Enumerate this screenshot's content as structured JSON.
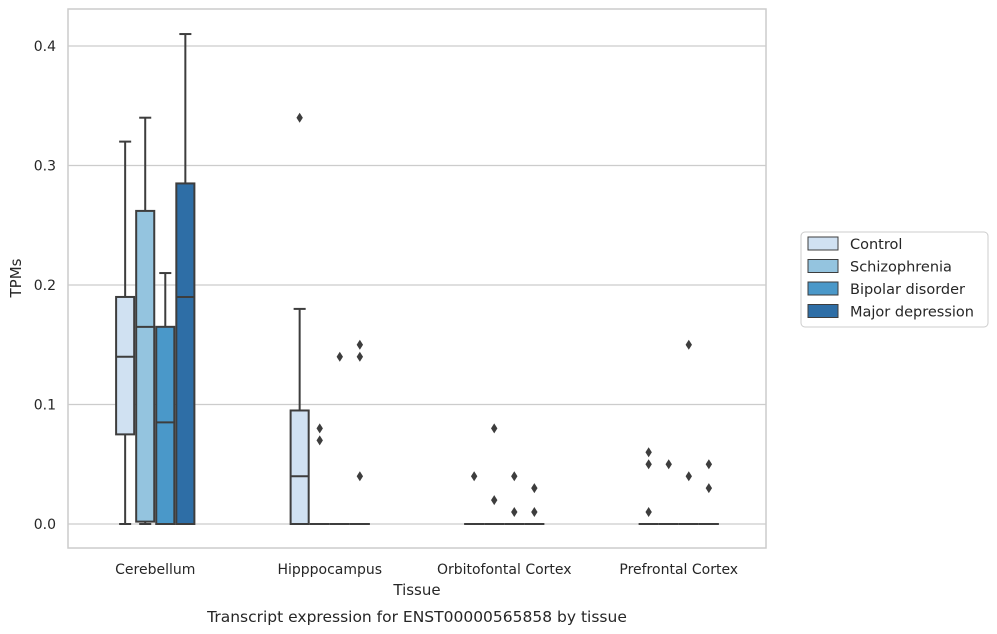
{
  "chart_data": {
    "type": "boxplot",
    "caption": "Transcript expression for ENST00000565858 by tissue",
    "xlabel": "Tissue",
    "ylabel": "TPMs",
    "ylim": [
      -0.02,
      0.43
    ],
    "yticks": [
      0.0,
      0.1,
      0.2,
      0.3,
      0.4
    ],
    "ytick_labels": [
      "0.0",
      "0.1",
      "0.2",
      "0.3",
      "0.4"
    ],
    "grid": true,
    "legend_position": "right",
    "categories": [
      "Cerebellum",
      "Hipppocampus",
      "Orbitofontal Cortex",
      "Prefrontal Cortex"
    ],
    "series": [
      {
        "name": "Control",
        "color": "#d0e1f2",
        "boxes": [
          {
            "whislo": 0.0,
            "q1": 0.075,
            "med": 0.14,
            "q3": 0.19,
            "whishi": 0.32,
            "fliers": []
          },
          {
            "whislo": 0.0,
            "q1": 0.0,
            "med": 0.04,
            "q3": 0.095,
            "whishi": 0.18,
            "fliers": [
              0.34
            ]
          },
          {
            "whislo": 0.0,
            "q1": 0.0,
            "med": 0.0,
            "q3": 0.0,
            "whishi": 0.0,
            "fliers": [
              0.04
            ]
          },
          {
            "whislo": 0.0,
            "q1": 0.0,
            "med": 0.0,
            "q3": 0.0,
            "whishi": 0.0,
            "fliers": [
              0.06,
              0.05,
              0.01
            ]
          }
        ]
      },
      {
        "name": "Schizophrenia",
        "color": "#94c4df",
        "boxes": [
          {
            "whislo": 0.0,
            "q1": 0.002,
            "med": 0.165,
            "q3": 0.262,
            "whishi": 0.34,
            "fliers": []
          },
          {
            "whislo": 0.0,
            "q1": 0.0,
            "med": 0.0,
            "q3": 0.0,
            "whishi": 0.0,
            "fliers": [
              0.08,
              0.07
            ]
          },
          {
            "whislo": 0.0,
            "q1": 0.0,
            "med": 0.0,
            "q3": 0.0,
            "whishi": 0.0,
            "fliers": [
              0.08,
              0.02
            ]
          },
          {
            "whislo": 0.0,
            "q1": 0.0,
            "med": 0.0,
            "q3": 0.0,
            "whishi": 0.0,
            "fliers": [
              0.05
            ]
          }
        ]
      },
      {
        "name": "Bipolar disorder",
        "color": "#4a98c9",
        "boxes": [
          {
            "whislo": 0.0,
            "q1": 0.0,
            "med": 0.085,
            "q3": 0.165,
            "whishi": 0.21,
            "fliers": []
          },
          {
            "whislo": 0.0,
            "q1": 0.0,
            "med": 0.0,
            "q3": 0.0,
            "whishi": 0.0,
            "fliers": [
              0.14
            ]
          },
          {
            "whislo": 0.0,
            "q1": 0.0,
            "med": 0.0,
            "q3": 0.0,
            "whishi": 0.0,
            "fliers": [
              0.04,
              0.01
            ]
          },
          {
            "whislo": 0.0,
            "q1": 0.0,
            "med": 0.0,
            "q3": 0.0,
            "whishi": 0.0,
            "fliers": [
              0.15,
              0.04
            ]
          }
        ]
      },
      {
        "name": "Major depression",
        "color": "#2e6ea6",
        "boxes": [
          {
            "whislo": 0.0,
            "q1": 0.0,
            "med": 0.19,
            "q3": 0.285,
            "whishi": 0.41,
            "fliers": []
          },
          {
            "whislo": 0.0,
            "q1": 0.0,
            "med": 0.0,
            "q3": 0.0,
            "whishi": 0.0,
            "fliers": [
              0.15,
              0.14,
              0.04
            ]
          },
          {
            "whislo": 0.0,
            "q1": 0.0,
            "med": 0.0,
            "q3": 0.0,
            "whishi": 0.0,
            "fliers": [
              0.03,
              0.01
            ]
          },
          {
            "whislo": 0.0,
            "q1": 0.0,
            "med": 0.0,
            "q3": 0.0,
            "whishi": 0.0,
            "fliers": [
              0.05,
              0.03
            ]
          }
        ]
      }
    ]
  }
}
